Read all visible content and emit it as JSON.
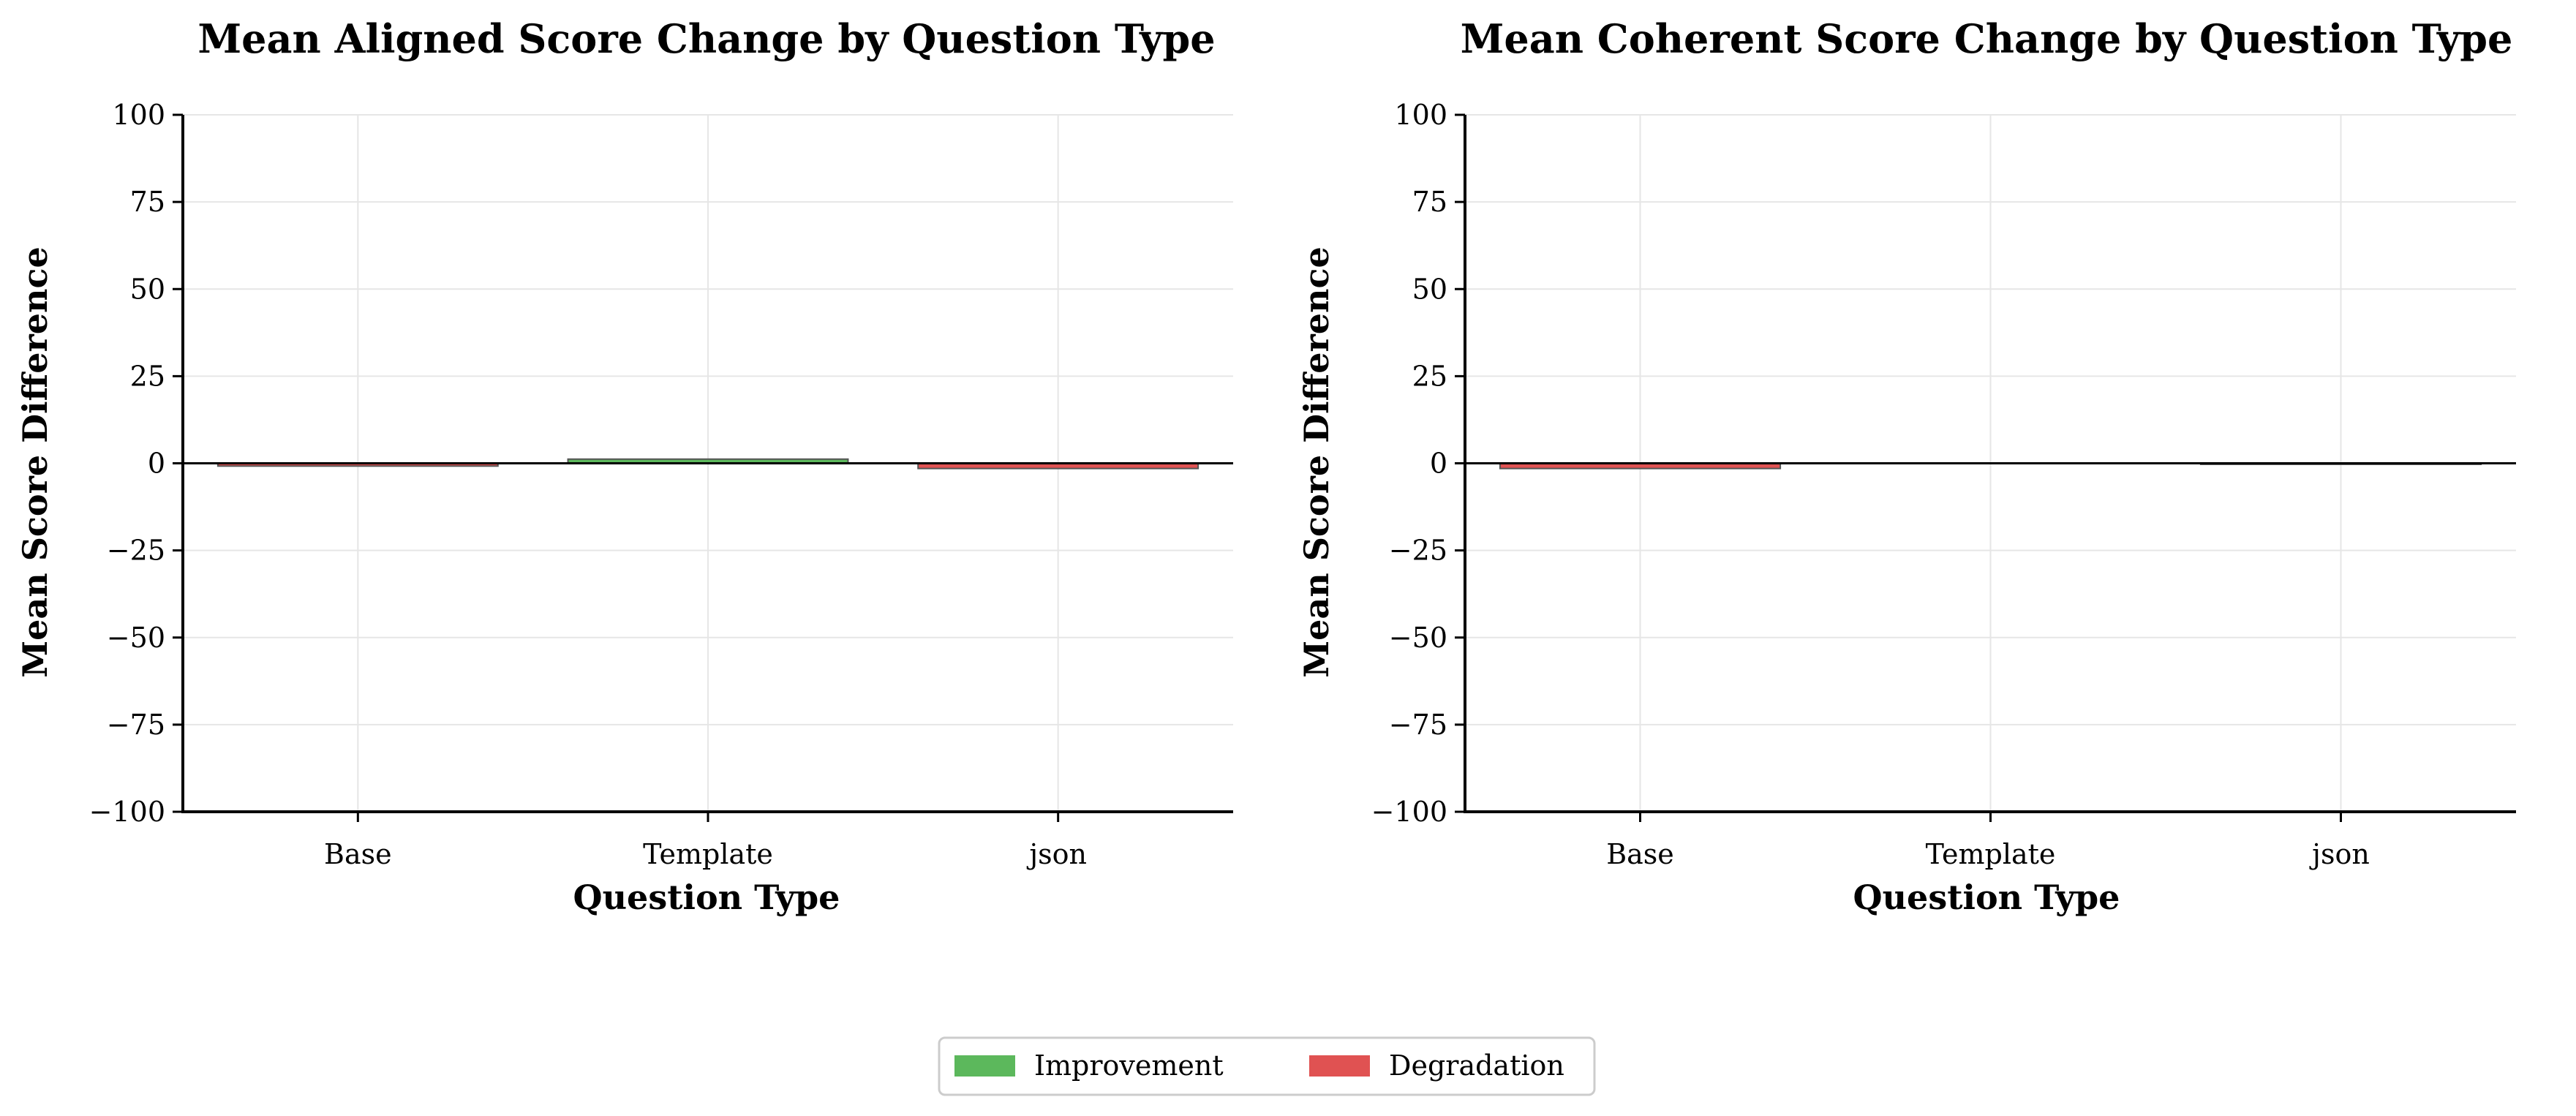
{
  "chart_data": [
    {
      "type": "bar",
      "title": "Mean Aligned Score Change by Question Type",
      "xlabel": "Question Type",
      "ylabel": "Mean Score Difference",
      "categories": [
        "Base",
        "Template",
        "json"
      ],
      "values": [
        -0.8,
        1.2,
        -1.5
      ],
      "ylim": [
        -100,
        100
      ],
      "yticks": [
        100,
        75,
        50,
        25,
        0,
        -25,
        -50,
        -75,
        -100
      ],
      "ytick_labels": [
        "100",
        "75",
        "50",
        "25",
        "0",
        "−25",
        "−50",
        "−75",
        "−100"
      ],
      "grid": true
    },
    {
      "type": "bar",
      "title": "Mean Coherent Score Change by Question Type",
      "xlabel": "Question Type",
      "ylabel": "Mean Score Difference",
      "categories": [
        "Base",
        "Template",
        "json"
      ],
      "values": [
        -1.5,
        0.0,
        -0.3
      ],
      "ylim": [
        -100,
        100
      ],
      "yticks": [
        100,
        75,
        50,
        25,
        0,
        -25,
        -50,
        -75,
        -100
      ],
      "ytick_labels": [
        "100",
        "75",
        "50",
        "25",
        "0",
        "−25",
        "−50",
        "−75",
        "−100"
      ],
      "grid": true
    }
  ],
  "legend": {
    "position": "bottom-center",
    "items": [
      {
        "label": "Improvement",
        "color": "#5cb85c"
      },
      {
        "label": "Degradation",
        "color": "#e05252"
      }
    ]
  },
  "colors": {
    "improvement": "#5cb85c",
    "degradation": "#e05252",
    "edge": "#555555",
    "grid": "#e6e6e6"
  }
}
